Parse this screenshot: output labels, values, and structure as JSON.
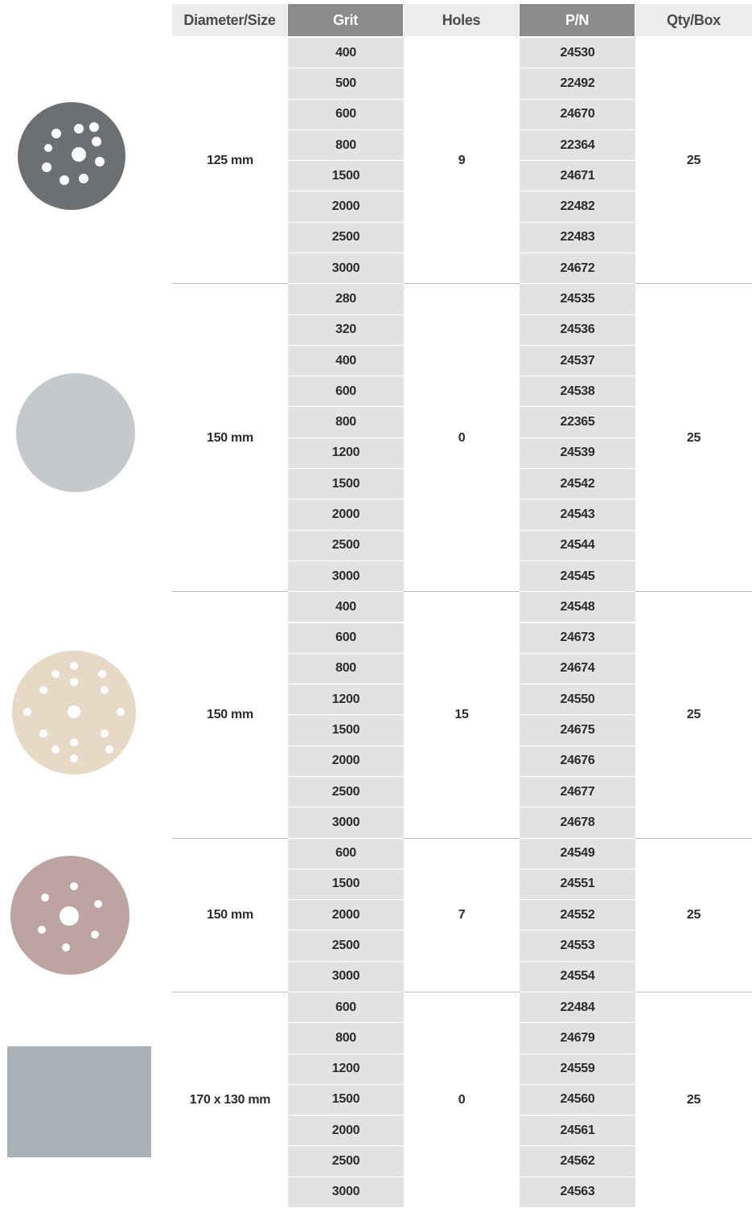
{
  "table": {
    "header": [
      "Diameter/Size",
      "Grit",
      "Holes",
      "P/N",
      "Qty/Box"
    ],
    "groups": [
      {
        "size": "125 mm",
        "holes": "9",
        "qty": "25",
        "rows": [
          [
            "400",
            "24530"
          ],
          [
            "500",
            "22492"
          ],
          [
            "600",
            "24670"
          ],
          [
            "800",
            "22364"
          ],
          [
            "1500",
            "24671"
          ],
          [
            "2000",
            "22482"
          ],
          [
            "2500",
            "22483"
          ],
          [
            "3000",
            "24672"
          ]
        ]
      },
      {
        "size": "150 mm",
        "holes": "0",
        "qty": "25",
        "rows": [
          [
            "280",
            "24535"
          ],
          [
            "320",
            "24536"
          ],
          [
            "400",
            "24537"
          ],
          [
            "600",
            "24538"
          ],
          [
            "800",
            "22365"
          ],
          [
            "1200",
            "24539"
          ],
          [
            "1500",
            "24542"
          ],
          [
            "2000",
            "24543"
          ],
          [
            "2500",
            "24544"
          ],
          [
            "3000",
            "24545"
          ]
        ]
      },
      {
        "size": "150 mm",
        "holes": "15",
        "qty": "25",
        "rows": [
          [
            "400",
            "24548"
          ],
          [
            "600",
            "24673"
          ],
          [
            "800",
            "24674"
          ],
          [
            "1200",
            "24550"
          ],
          [
            "1500",
            "24675"
          ],
          [
            "2000",
            "24676"
          ],
          [
            "2500",
            "24677"
          ],
          [
            "3000",
            "24678"
          ]
        ]
      },
      {
        "size": "150 mm",
        "holes": "7",
        "qty": "25",
        "rows": [
          [
            "600",
            "24549"
          ],
          [
            "1500",
            "24551"
          ],
          [
            "2000",
            "24552"
          ],
          [
            "2500",
            "24553"
          ],
          [
            "3000",
            "24554"
          ]
        ]
      },
      {
        "size": "170 x 130 mm",
        "holes": "0",
        "qty": "25",
        "rows": [
          [
            "600",
            "22484"
          ],
          [
            "800",
            "24679"
          ],
          [
            "1200",
            "24559"
          ],
          [
            "1500",
            "24560"
          ],
          [
            "2000",
            "24561"
          ],
          [
            "2500",
            "24562"
          ],
          [
            "3000",
            "24563"
          ]
        ]
      }
    ]
  }
}
